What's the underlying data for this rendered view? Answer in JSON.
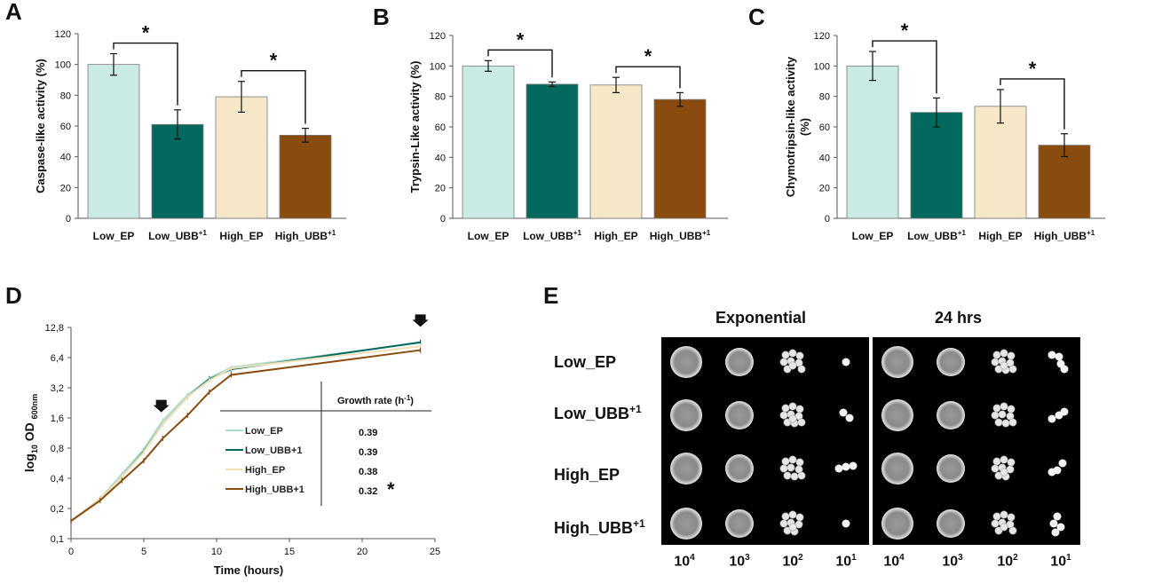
{
  "panels": {
    "A": "A",
    "B": "B",
    "C": "C",
    "D": "D",
    "E": "E"
  },
  "bar_categories": [
    "Low_EP",
    "Low_UBB",
    "High_EP",
    "High_UBB"
  ],
  "category_superscripts": [
    "",
    "+1",
    "",
    "+1"
  ],
  "bar_colors": [
    "#c9ebe4",
    "#03695e",
    "#f5e7c8",
    "#8a4b0e"
  ],
  "chart_data": [
    {
      "type": "bar",
      "panel": "A",
      "title": "",
      "ylabel": "Caspase-like activity (%)",
      "xlabel": "",
      "ylim": [
        0,
        120
      ],
      "yticks": [
        0,
        20,
        40,
        60,
        80,
        100,
        120
      ],
      "categories": [
        "Low_EP",
        "Low_UBB+1",
        "High_EP",
        "High_UBB+1"
      ],
      "values": [
        100,
        61,
        79,
        54
      ],
      "errors": [
        7,
        9.5,
        10,
        4.5
      ],
      "significance": [
        {
          "from": 0,
          "to": 1,
          "label": "*"
        },
        {
          "from": 2,
          "to": 3,
          "label": "*"
        }
      ]
    },
    {
      "type": "bar",
      "panel": "B",
      "title": "",
      "ylabel": "Trypsin-Like activity (%)",
      "xlabel": "",
      "ylim": [
        0,
        120
      ],
      "yticks": [
        0,
        20,
        40,
        60,
        80,
        100,
        120
      ],
      "categories": [
        "Low_EP",
        "Low_UBB+1",
        "High_EP",
        "High_UBB+1"
      ],
      "values": [
        100,
        88,
        87.5,
        78
      ],
      "errors": [
        3.5,
        1.5,
        5,
        4.5
      ],
      "significance": [
        {
          "from": 0,
          "to": 1,
          "label": "*"
        },
        {
          "from": 2,
          "to": 3,
          "label": "*"
        }
      ]
    },
    {
      "type": "bar",
      "panel": "C",
      "title": "",
      "ylabel": "Chymotripsin-like activity (%)",
      "ylabel_lines": [
        "Chymotripsin-like activity",
        "(%)"
      ],
      "xlabel": "",
      "ylim": [
        0,
        120
      ],
      "yticks": [
        0,
        20,
        40,
        60,
        80,
        100,
        120
      ],
      "categories": [
        "Low_EP",
        "Low_UBB+1",
        "High_EP",
        "High_UBB+1"
      ],
      "values": [
        100,
        69.5,
        73.5,
        48
      ],
      "errors": [
        9.5,
        9.5,
        11,
        7.5
      ],
      "significance": [
        {
          "from": 0,
          "to": 1,
          "label": "*"
        },
        {
          "from": 2,
          "to": 3,
          "label": "*"
        }
      ]
    },
    {
      "type": "line",
      "panel": "D",
      "title": "",
      "xlabel": "Time (hours)",
      "ylabel_parts": [
        "log",
        "10",
        " OD ",
        "600nm"
      ],
      "xlim": [
        0,
        25
      ],
      "xticks": [
        0,
        5,
        10,
        15,
        20,
        25
      ],
      "y_scale": "log2",
      "ylim": [
        0.1,
        12.8
      ],
      "yticks": [
        0.1,
        0.2,
        0.4,
        0.8,
        1.6,
        3.2,
        6.4,
        12.8
      ],
      "ytick_labels": [
        "0,1",
        "0,2",
        "0,4",
        "0,8",
        "1,6",
        "3,2",
        "6,4",
        "12,8"
      ],
      "arrows_at_x": [
        6.2,
        24
      ],
      "series": [
        {
          "name": "Low_EP",
          "color": "#a8dcd3",
          "x": [
            0,
            2,
            3.5,
            5,
            6.3,
            8,
            9.5,
            11,
            24
          ],
          "y": [
            0.15,
            0.25,
            0.44,
            0.78,
            1.5,
            2.7,
            4.0,
            5.1,
            9.0
          ]
        },
        {
          "name": "Low_UBB+1",
          "color": "#03695e",
          "x": [
            0,
            2,
            3.5,
            5,
            6.3,
            8,
            9.5,
            11,
            24
          ],
          "y": [
            0.15,
            0.25,
            0.42,
            0.74,
            1.4,
            2.6,
            3.9,
            4.9,
            9.1
          ]
        },
        {
          "name": "High_EP",
          "color": "#efe0b6",
          "x": [
            0,
            2,
            3.5,
            5,
            6.3,
            8,
            9.5,
            11,
            24
          ],
          "y": [
            0.15,
            0.25,
            0.42,
            0.73,
            1.4,
            2.6,
            3.8,
            5.0,
            8.3
          ]
        },
        {
          "name": "High_UBB+1",
          "color": "#8a4b0e",
          "x": [
            0,
            2,
            3.5,
            5,
            6.3,
            8,
            9.5,
            11,
            24
          ],
          "y": [
            0.15,
            0.24,
            0.38,
            0.6,
            1.0,
            1.7,
            2.9,
            4.3,
            7.6
          ]
        }
      ],
      "legend": {
        "header": "Growth rate (h",
        "header_sup": "-1",
        "header_close": ")",
        "rates": [
          "0.39",
          "0.39",
          "0.38",
          "0.32"
        ],
        "significance_marker": "*"
      }
    }
  ],
  "spot_assay": {
    "titles": [
      "Exponential",
      "24 hrs"
    ],
    "rows": [
      {
        "label": "Low_EP",
        "sup": ""
      },
      {
        "label": "Low_UBB",
        "sup": "+1"
      },
      {
        "label": "High_EP",
        "sup": ""
      },
      {
        "label": "High_UBB",
        "sup": "+1"
      }
    ],
    "dilution_base": "10",
    "dilution_exponents": [
      "4",
      "3",
      "2",
      "1",
      "4",
      "3",
      "2",
      "1"
    ]
  }
}
